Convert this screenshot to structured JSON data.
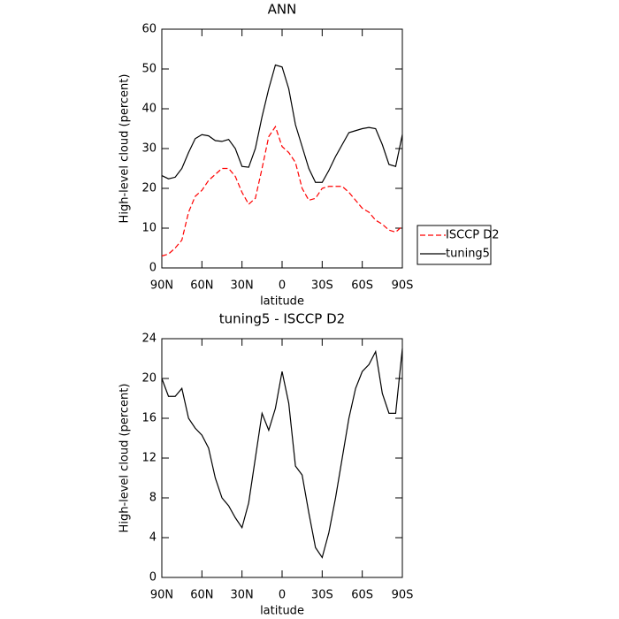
{
  "chart_data": [
    {
      "type": "line",
      "title": "ANN",
      "xlabel": "latitude",
      "ylabel": "High-level cloud (percent)",
      "x": [
        90,
        85,
        80,
        75,
        70,
        65,
        60,
        55,
        50,
        45,
        40,
        35,
        30,
        25,
        20,
        15,
        10,
        5,
        0,
        -5,
        -10,
        -15,
        -20,
        -25,
        -30,
        -35,
        -40,
        -45,
        -50,
        -55,
        -60,
        -65,
        -70,
        -75,
        -80,
        -85,
        -90
      ],
      "series": [
        {
          "name": "ISCCP D2",
          "color": "#ff0000",
          "linestyle": "dashed",
          "values": [
            3,
            3.5,
            5,
            7,
            14,
            18,
            19.5,
            22,
            23.5,
            25,
            25,
            23,
            19,
            16,
            17.5,
            25,
            33,
            35.5,
            30.5,
            29,
            26.5,
            20,
            17,
            17.5,
            20,
            20.5,
            20.5,
            20.5,
            19,
            17,
            15,
            14,
            12,
            11,
            9.5,
            9,
            10.5
          ]
        },
        {
          "name": "tuning5",
          "color": "#000000",
          "linestyle": "solid",
          "values": [
            23.2,
            22.4,
            22.8,
            25,
            29,
            32.5,
            33.5,
            33.2,
            32,
            31.8,
            32.3,
            30,
            25.5,
            25.3,
            30,
            38,
            45,
            51,
            50.5,
            45,
            36,
            30.5,
            25,
            21.5,
            21.5,
            24.5,
            28,
            31,
            34,
            34.5,
            35,
            35.3,
            35,
            31,
            26,
            25.5,
            33.5
          ]
        }
      ],
      "xlim": [
        90,
        -90
      ],
      "xticks": [
        {
          "value": 90,
          "label": "90N"
        },
        {
          "value": 60,
          "label": "60N"
        },
        {
          "value": 30,
          "label": "30N"
        },
        0,
        {
          "value": -30,
          "label": "30S"
        },
        {
          "value": -60,
          "label": "60S"
        },
        {
          "value": -90,
          "label": "90S"
        }
      ],
      "ylim": [
        0,
        60
      ],
      "yticks": [
        0,
        10,
        20,
        30,
        40,
        50,
        60
      ],
      "legend": "right"
    },
    {
      "type": "line",
      "title": "tuning5 - ISCCP D2",
      "xlabel": "latitude",
      "ylabel": "High-level cloud (percent)",
      "x": [
        90,
        85,
        80,
        75,
        70,
        65,
        60,
        55,
        50,
        45,
        40,
        35,
        30,
        25,
        20,
        15,
        10,
        5,
        0,
        -5,
        -10,
        -15,
        -20,
        -25,
        -30,
        -35,
        -40,
        -45,
        -50,
        -55,
        -60,
        -65,
        -70,
        -75,
        -80,
        -85,
        -90
      ],
      "series": [
        {
          "color": "#000000",
          "linestyle": "solid",
          "values": [
            20,
            18.2,
            18.2,
            19,
            16,
            15,
            14.3,
            13,
            10,
            8,
            7.2,
            6,
            5,
            7.5,
            12,
            16.5,
            14.8,
            17,
            20.7,
            17.5,
            11.2,
            10.3,
            6.5,
            3,
            2,
            4.5,
            8,
            12,
            16,
            19,
            20.7,
            21.4,
            22.7,
            18.5,
            16.5,
            16.5,
            23
          ]
        }
      ],
      "xlim": [
        90,
        -90
      ],
      "xticks": [
        {
          "value": 90,
          "label": "90N"
        },
        {
          "value": 60,
          "label": "60N"
        },
        {
          "value": 30,
          "label": "30N"
        },
        0,
        {
          "value": -30,
          "label": "30S"
        },
        {
          "value": -60,
          "label": "60S"
        },
        {
          "value": -90,
          "label": "90S"
        }
      ],
      "ylim": [
        0,
        24
      ],
      "yticks": [
        0,
        4,
        8,
        12,
        16,
        20,
        24
      ]
    }
  ]
}
